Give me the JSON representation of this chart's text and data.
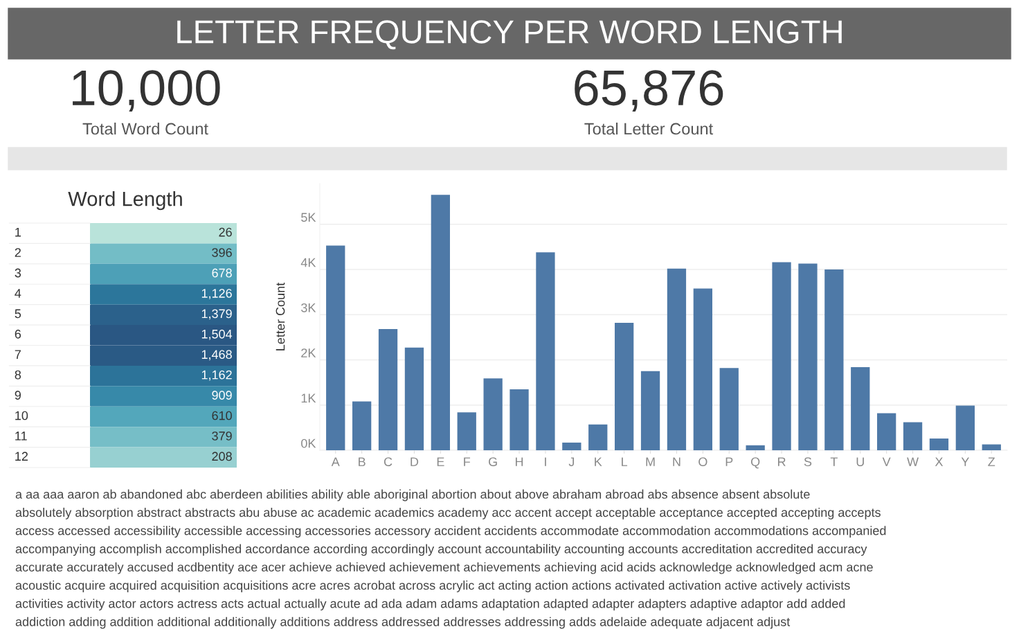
{
  "chart_data": [
    {
      "type": "other",
      "title": "LETTER FREQUENCY PER WORD LENGTH",
      "annotations": [
        "10,000",
        "Total Word Count",
        "65,876",
        "Total Letter Count"
      ]
    },
    {
      "type": "heatmap",
      "title": "Word Length",
      "categories": [
        null
      ],
      "y_categories": [
        "1",
        "2",
        "3",
        "4",
        "5",
        "6",
        "7",
        "8",
        "9",
        "10",
        "11",
        "12"
      ],
      "cells": [
        [
          26
        ],
        [
          396
        ],
        [
          678
        ],
        [
          1126
        ],
        [
          1379
        ],
        [
          1504
        ],
        [
          1468
        ],
        [
          1162
        ],
        [
          909
        ],
        [
          610
        ],
        [
          379
        ],
        [
          208
        ]
      ],
      "cell_labels": [
        [
          "26"
        ],
        [
          "396"
        ],
        [
          "678"
        ],
        [
          "1,126"
        ],
        [
          "1,379"
        ],
        [
          "1,504"
        ],
        [
          "1,468"
        ],
        [
          "1,162"
        ],
        [
          "909"
        ],
        [
          "610"
        ],
        [
          "379"
        ],
        [
          "208"
        ]
      ]
    },
    {
      "type": "bar",
      "ylabel": "Letter Count",
      "color": "#4e79a7",
      "grid": "y",
      "categories": [
        "A",
        "B",
        "C",
        "D",
        "E",
        "F",
        "G",
        "H",
        "I",
        "J",
        "K",
        "L",
        "M",
        "N",
        "O",
        "P",
        "Q",
        "R",
        "S",
        "T",
        "U",
        "V",
        "W",
        "X",
        "Y",
        "Z"
      ],
      "values": [
        4530,
        1080,
        2680,
        2270,
        5650,
        840,
        1590,
        1350,
        4380,
        170,
        570,
        2820,
        1750,
        4020,
        3580,
        1820,
        110,
        4160,
        4130,
        4000,
        1840,
        820,
        620,
        260,
        990,
        130
      ],
      "ylim": [
        0,
        5900
      ],
      "yticks": [
        {
          "value": 0,
          "label": "0K"
        },
        {
          "value": 1000,
          "label": "1K"
        },
        {
          "value": 2000,
          "label": "2K"
        },
        {
          "value": 3000,
          "label": "3K"
        },
        {
          "value": 4000,
          "label": "4K"
        },
        {
          "value": 5000,
          "label": "5K"
        }
      ]
    },
    {
      "type": "other",
      "annotations": [
        "a aa aaa aaron ab abandoned abc aberdeen abilities ability able aboriginal abortion about above abraham abroad abs absence absent absolute",
        "absolutely absorption abstract abstracts abu abuse ac academic academics academy acc accent accept acceptable acceptance accepted accepting accepts",
        "access accessed accessibility accessible accessing accessories accessory accident accidents accommodate accommodation accommodations accompanied",
        "accompanying accomplish accomplished accordance according accordingly account accountability accounting accounts accreditation accredited accuracy",
        "accurate accurately accused acdbentity ace acer achieve achieved achievement achievements achieving acid acids acknowledge acknowledged acm acne",
        "acoustic acquire acquired acquisition acquisitions acre acres acrobat across acrylic act acting action actions activated activation active actively activists",
        "activities activity actor actors actress acts actual actually acute ad ada adam adams adaptation adapted adapter adapters adaptive adaptor add added",
        "addiction adding addition additional additionally additions address addressed addresses addressing adds adelaide adequate adjacent adjust"
      ]
    }
  ]
}
